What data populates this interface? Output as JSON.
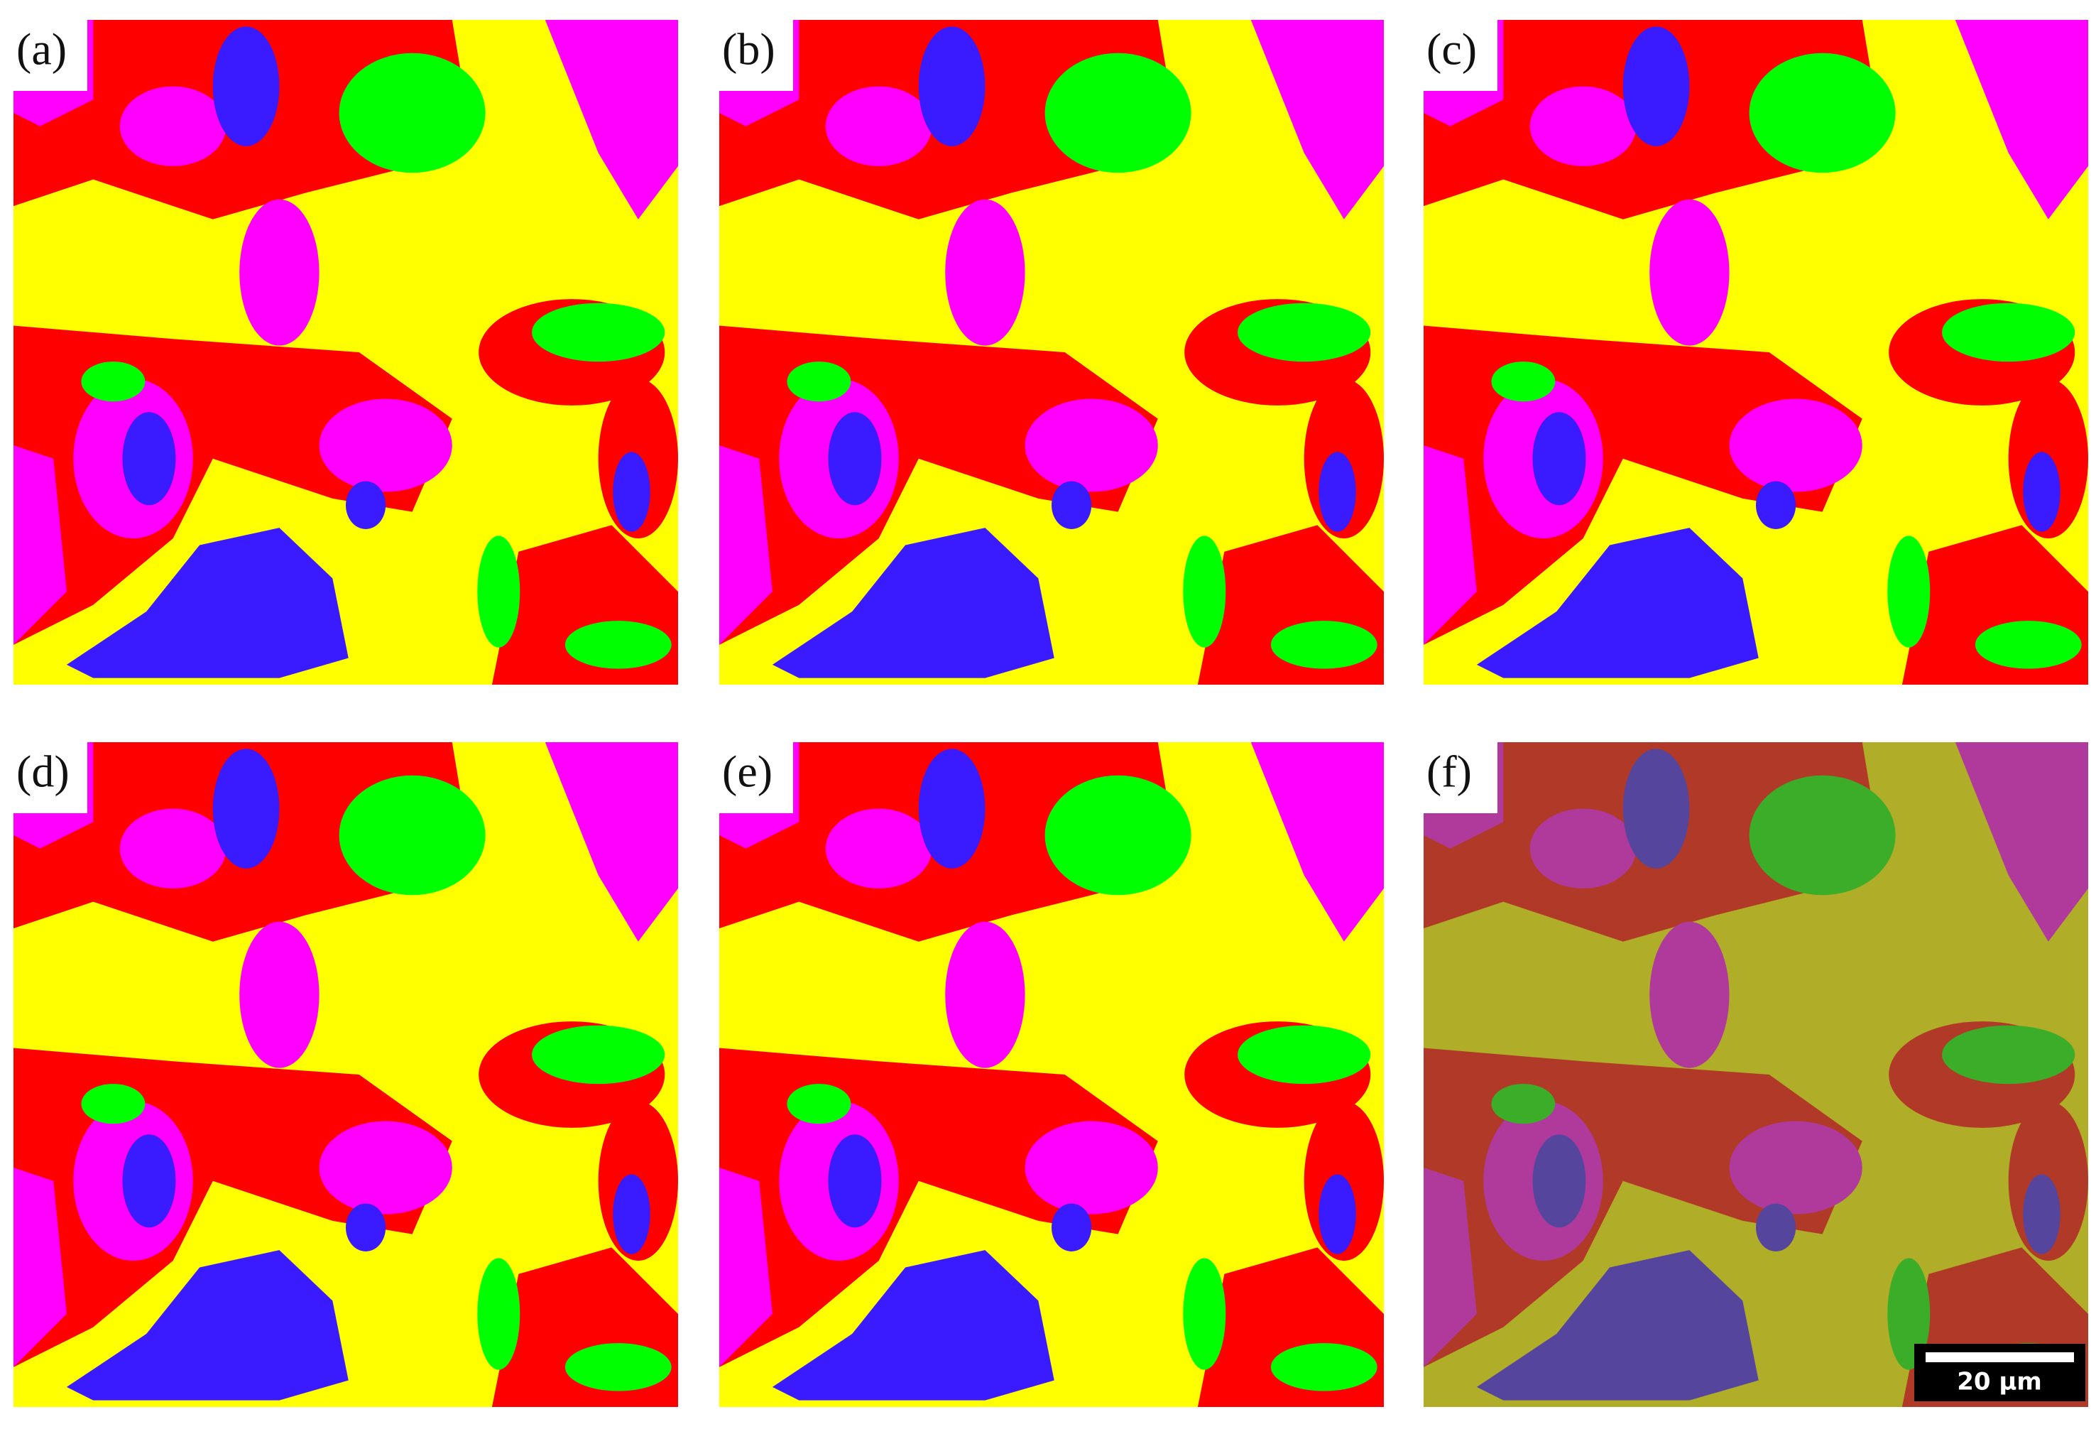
{
  "panels": [
    {
      "label": "(a)"
    },
    {
      "label": "(b)"
    },
    {
      "label": "(c)"
    },
    {
      "label": "(d)"
    },
    {
      "label": "(e)"
    },
    {
      "label": "(f)"
    }
  ],
  "scale_bar": {
    "label": "20 µm"
  }
}
